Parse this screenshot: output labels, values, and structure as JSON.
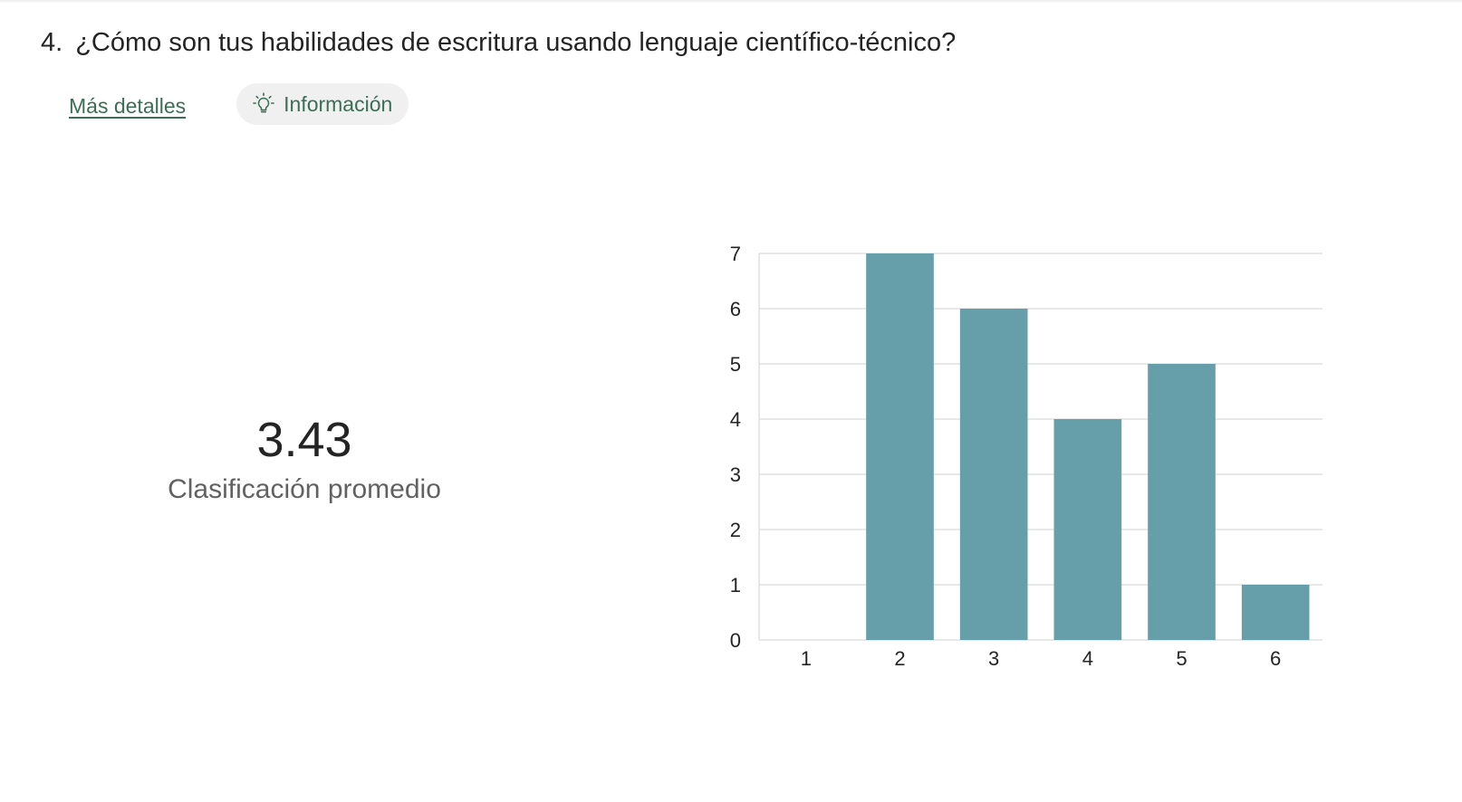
{
  "question": {
    "number": "4.",
    "text": "¿Cómo son tus habilidades de escritura usando lenguaje científico-técnico?"
  },
  "actions": {
    "details_link": "Más detalles",
    "info_button": "Información",
    "info_icon": "lightbulb-icon"
  },
  "summary": {
    "average": "3.43",
    "label": "Clasificación promedio"
  },
  "colors": {
    "bar": "#669eaa",
    "link": "#3b6e55",
    "grid": "#e1e1e1"
  },
  "chart_data": {
    "type": "bar",
    "categories": [
      "1",
      "2",
      "3",
      "4",
      "5",
      "6"
    ],
    "values": [
      0,
      7,
      6,
      4,
      5,
      1
    ],
    "ylim": [
      0,
      7
    ],
    "yticks": [
      0,
      1,
      2,
      3,
      4,
      5,
      6,
      7
    ],
    "grid": true,
    "legend": "none",
    "title": "",
    "xlabel": "",
    "ylabel": ""
  }
}
